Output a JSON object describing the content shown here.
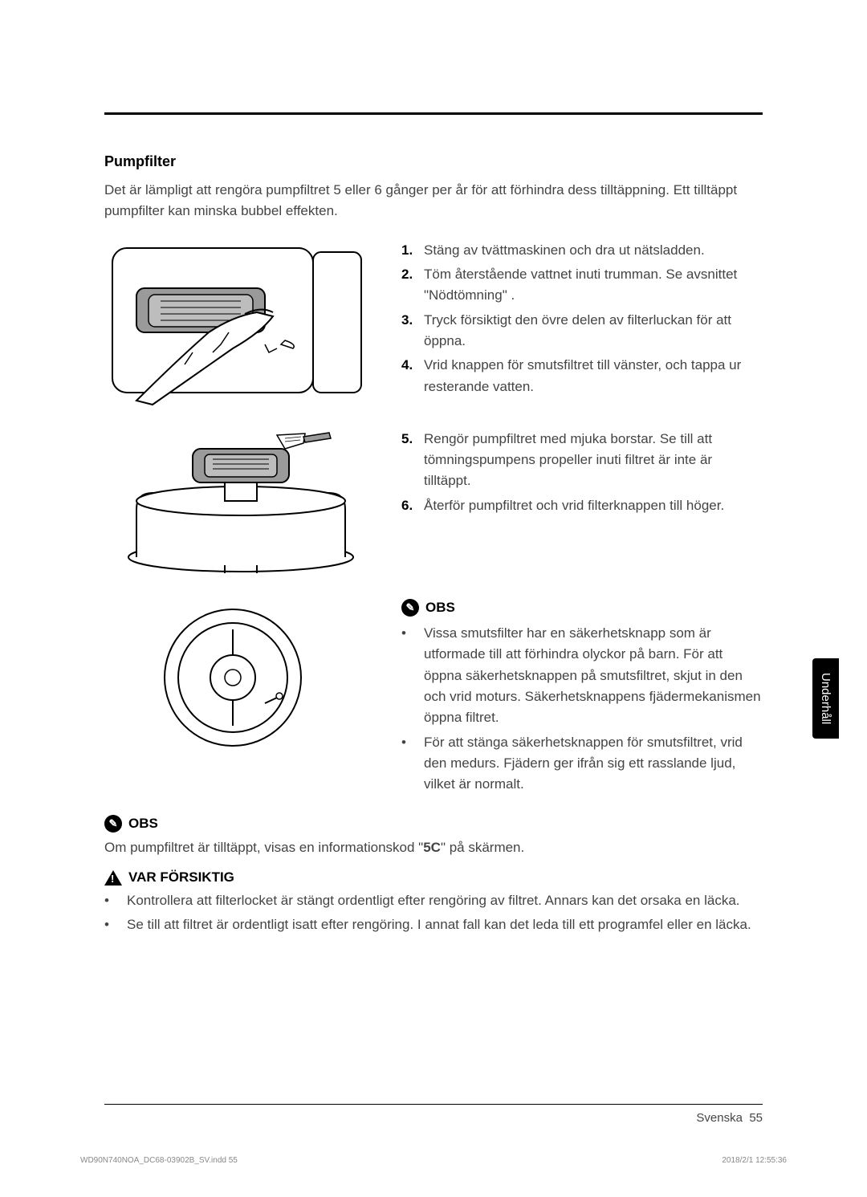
{
  "section_title": "Pumpfilter",
  "intro": "Det är lämpligt att rengöra pumpfiltret 5 eller 6 gånger per år för att förhindra dess tilltäppning. Ett tilltäppt pumpfilter kan minska bubbel effekten.",
  "steps_a": [
    {
      "n": "1.",
      "t": "Stäng av tvättmaskinen och dra ut nätsladden."
    },
    {
      "n": "2.",
      "t": "Töm återstående vattnet inuti trumman. Se avsnittet \"Nödtömning\" ."
    },
    {
      "n": "3.",
      "t": "Tryck försiktigt den övre delen av filterluckan för att öppna."
    },
    {
      "n": "4.",
      "t": "Vrid knappen för smutsfiltret till vänster, och tappa ur resterande vatten."
    }
  ],
  "steps_b": [
    {
      "n": "5.",
      "t": "Rengör pumpfiltret med mjuka borstar. Se till att tömningspumpens propeller inuti filtret är inte är tilltäppt."
    },
    {
      "n": "6.",
      "t": "Återför pumpfiltret och vrid filterknappen till höger."
    }
  ],
  "obs_label": "OBS",
  "obs1_bullets": [
    "Vissa smutsfilter har en säkerhetsknapp som är utformade till att förhindra olyckor på barn. För att öppna säkerhetsknappen på smutsfiltret, skjut in den och vrid moturs. Säkerhetsknappens fjädermekanismen öppna filtret.",
    "För att stänga säkerhetsknappen för smutsfiltret, vrid den medurs. Fjädern ger ifrån sig ett rasslande ljud, vilket är normalt."
  ],
  "obs2_text_pre": "Om pumpfiltret är tilltäppt, visas en informationskod \"",
  "obs2_code": "5C",
  "obs2_text_post": "\" på skärmen.",
  "caution_label": "VAR FÖRSIKTIG",
  "caution_bullets": [
    "Kontrollera att filterlocket är stängt ordentligt efter rengöring av filtret. Annars kan det orsaka en läcka.",
    "Se till att filtret är ordentligt isatt efter rengöring. I annat fall kan det leda till ett programfel eller en läcka."
  ],
  "sidetab": "Underhåll",
  "footer_lang": "Svenska",
  "footer_page": "55",
  "footer_file": "WD90N740NOA_DC68-03902B_SV.indd   55",
  "footer_date": "2018/2/1   12:55:36"
}
